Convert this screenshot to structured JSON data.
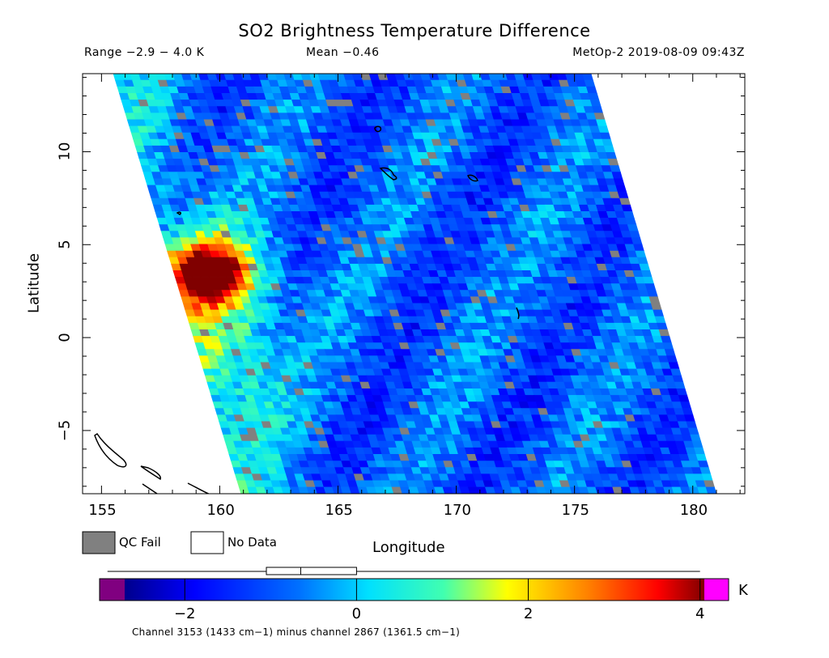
{
  "chart_data": {
    "type": "heatmap",
    "title": "SO2 Brightness Temperature Difference",
    "range_text": "Range −2.9 − 4.0 K",
    "mean_text": "Mean −0.46",
    "satellite_text": "MetOp-2 2019-08-09 09:43Z",
    "xlabel": "Longitude",
    "ylabel": "Latitude",
    "xlim": [
      154.2,
      182.2
    ],
    "ylim": [
      -8.4,
      14.2
    ],
    "xticks": [
      155,
      160,
      165,
      170,
      175,
      180
    ],
    "yticks": [
      10,
      5,
      0,
      -5
    ],
    "xtick_labels": [
      "155",
      "160",
      "165",
      "170",
      "175",
      "180"
    ],
    "ytick_labels": [
      "10",
      "5",
      "0",
      "−5"
    ],
    "swath_corners_lonlat": {
      "top_left": [
        155.5,
        14.2
      ],
      "top_right": [
        175.7,
        14.2
      ],
      "bottom_right": [
        181.0,
        -8.4
      ],
      "bottom_left": [
        160.9,
        -8.4
      ]
    },
    "features": [
      {
        "name": "hot-spot",
        "lon": 159.5,
        "lat": 3.5,
        "value": 3.0
      },
      {
        "name": "warm-band",
        "lon": 160.5,
        "lat": 0.5,
        "value": 1.5
      }
    ],
    "background_value": -0.9,
    "legend": {
      "qc_fail": "QC Fail",
      "no_data": "No Data",
      "qc_fail_color": "#808080",
      "no_data_color": "#ffffff"
    },
    "colorbar": {
      "vmin": -2.7,
      "vmax": 4.05,
      "ticks": [
        -2,
        0,
        2,
        4
      ],
      "tick_labels": [
        "−2",
        "0",
        "2",
        "4"
      ],
      "unit": "K",
      "under_color": "#800080",
      "over_color": "#ff00ff",
      "box_stats": {
        "whisker_low": -2.9,
        "q1": -1.05,
        "median": -0.65,
        "q3": -0.0,
        "whisker_high": 4.0
      }
    },
    "caption": "Channel 3153 (1433 cm−1) minus channel 2867 (1361.5 cm−1)"
  }
}
